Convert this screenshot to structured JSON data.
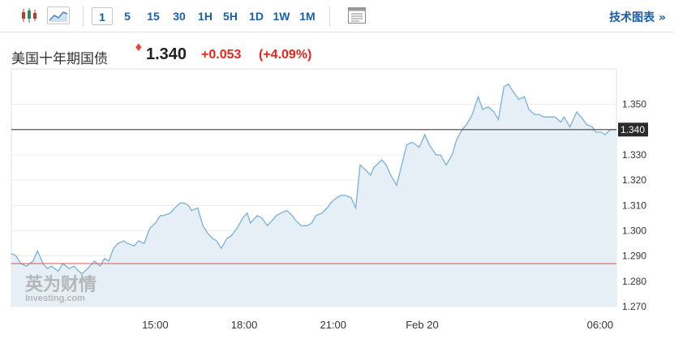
{
  "toolbar": {
    "intervals": [
      "1",
      "5",
      "15",
      "30",
      "1H",
      "5H",
      "1D",
      "1W",
      "1M"
    ],
    "active_interval": "1",
    "tech_chart_label": "技术图表 »"
  },
  "instrument": {
    "name": "美国十年期国债",
    "price": "1.340",
    "change": "+0.053",
    "change_pct": "(+4.09%)"
  },
  "watermark": {
    "line1": "英为财情",
    "line2": "Investing.com"
  },
  "colors": {
    "line": "#7ab0d8",
    "area": "#e6eff6",
    "current_line": "#444444",
    "prev_close_line": "#e05050",
    "up": "#e8261c",
    "link": "#1a5fa8"
  },
  "icons": {
    "candles": "candlestick-icon",
    "area": "area-chart-icon",
    "calendar": "calendar-icon"
  },
  "chart_data": {
    "type": "area",
    "y_ticks": [
      "1.350",
      "1.340",
      "1.330",
      "1.320",
      "1.310",
      "1.300",
      "1.290",
      "1.280",
      "1.270"
    ],
    "ylim": [
      1.27,
      1.364
    ],
    "x_ticks": [
      {
        "label": "15:00",
        "x": 15
      },
      {
        "label": "18:00",
        "x": 18
      },
      {
        "label": "21:00",
        "x": 21
      },
      {
        "label": "Feb 20",
        "x": 24
      },
      {
        "label": "06:00",
        "x": 30
      }
    ],
    "xlim": [
      10.15,
      30.55
    ],
    "current_price": 1.34,
    "current_label": "1.340",
    "prev_close": 1.287,
    "x": [
      10.15,
      10.31,
      10.47,
      10.66,
      10.88,
      11.03,
      11.22,
      11.37,
      11.5,
      11.73,
      11.88,
      12.11,
      12.26,
      12.42,
      12.53,
      12.72,
      12.95,
      13.14,
      13.29,
      13.44,
      13.59,
      13.75,
      13.94,
      14.06,
      14.29,
      14.44,
      14.63,
      14.82,
      15.01,
      15.17,
      15.28,
      15.51,
      15.66,
      15.85,
      15.97,
      16.12,
      16.23,
      16.43,
      16.61,
      16.77,
      16.92,
      17.07,
      17.23,
      17.42,
      17.57,
      17.76,
      17.95,
      18.1,
      18.21,
      18.44,
      18.6,
      18.78,
      18.94,
      19.09,
      19.24,
      19.43,
      19.62,
      19.74,
      19.93,
      20.12,
      20.27,
      20.42,
      20.62,
      20.8,
      20.92,
      21.11,
      21.26,
      21.41,
      21.61,
      21.76,
      21.91,
      22.1,
      22.26,
      22.37,
      22.64,
      22.79,
      22.94,
      23.14,
      23.29,
      23.48,
      23.67,
      23.9,
      24.09,
      24.24,
      24.47,
      24.62,
      24.81,
      25.01,
      25.16,
      25.35,
      25.5,
      25.69,
      25.89,
      26.04,
      26.23,
      26.42,
      26.57,
      26.76,
      26.91,
      27.07,
      27.26,
      27.45,
      27.6,
      27.79,
      27.94,
      28.1,
      28.29,
      28.48,
      28.67,
      28.79,
      28.98,
      29.21,
      29.36,
      29.55,
      29.74,
      29.85,
      30.04,
      30.16,
      30.35,
      30.55
    ],
    "y": [
      1.291,
      1.29,
      1.287,
      1.286,
      1.288,
      1.292,
      1.287,
      1.285,
      1.286,
      1.284,
      1.287,
      1.285,
      1.286,
      1.284,
      1.283,
      1.285,
      1.288,
      1.286,
      1.289,
      1.288,
      1.293,
      1.295,
      1.296,
      1.295,
      1.294,
      1.296,
      1.295,
      1.301,
      1.303,
      1.306,
      1.306,
      1.307,
      1.309,
      1.311,
      1.311,
      1.31,
      1.308,
      1.309,
      1.302,
      1.299,
      1.297,
      1.296,
      1.293,
      1.297,
      1.298,
      1.301,
      1.305,
      1.307,
      1.303,
      1.306,
      1.305,
      1.302,
      1.304,
      1.306,
      1.307,
      1.308,
      1.306,
      1.304,
      1.302,
      1.302,
      1.303,
      1.306,
      1.307,
      1.309,
      1.311,
      1.313,
      1.314,
      1.314,
      1.313,
      1.309,
      1.326,
      1.324,
      1.322,
      1.325,
      1.328,
      1.326,
      1.322,
      1.318,
      1.325,
      1.334,
      1.335,
      1.333,
      1.338,
      1.334,
      1.33,
      1.33,
      1.326,
      1.33,
      1.336,
      1.34,
      1.342,
      1.346,
      1.353,
      1.348,
      1.349,
      1.347,
      1.344,
      1.357,
      1.358,
      1.355,
      1.352,
      1.353,
      1.348,
      1.346,
      1.346,
      1.345,
      1.345,
      1.345,
      1.343,
      1.345,
      1.341,
      1.347,
      1.345,
      1.342,
      1.341,
      1.339,
      1.339,
      1.338,
      1.34,
      1.34
    ]
  }
}
